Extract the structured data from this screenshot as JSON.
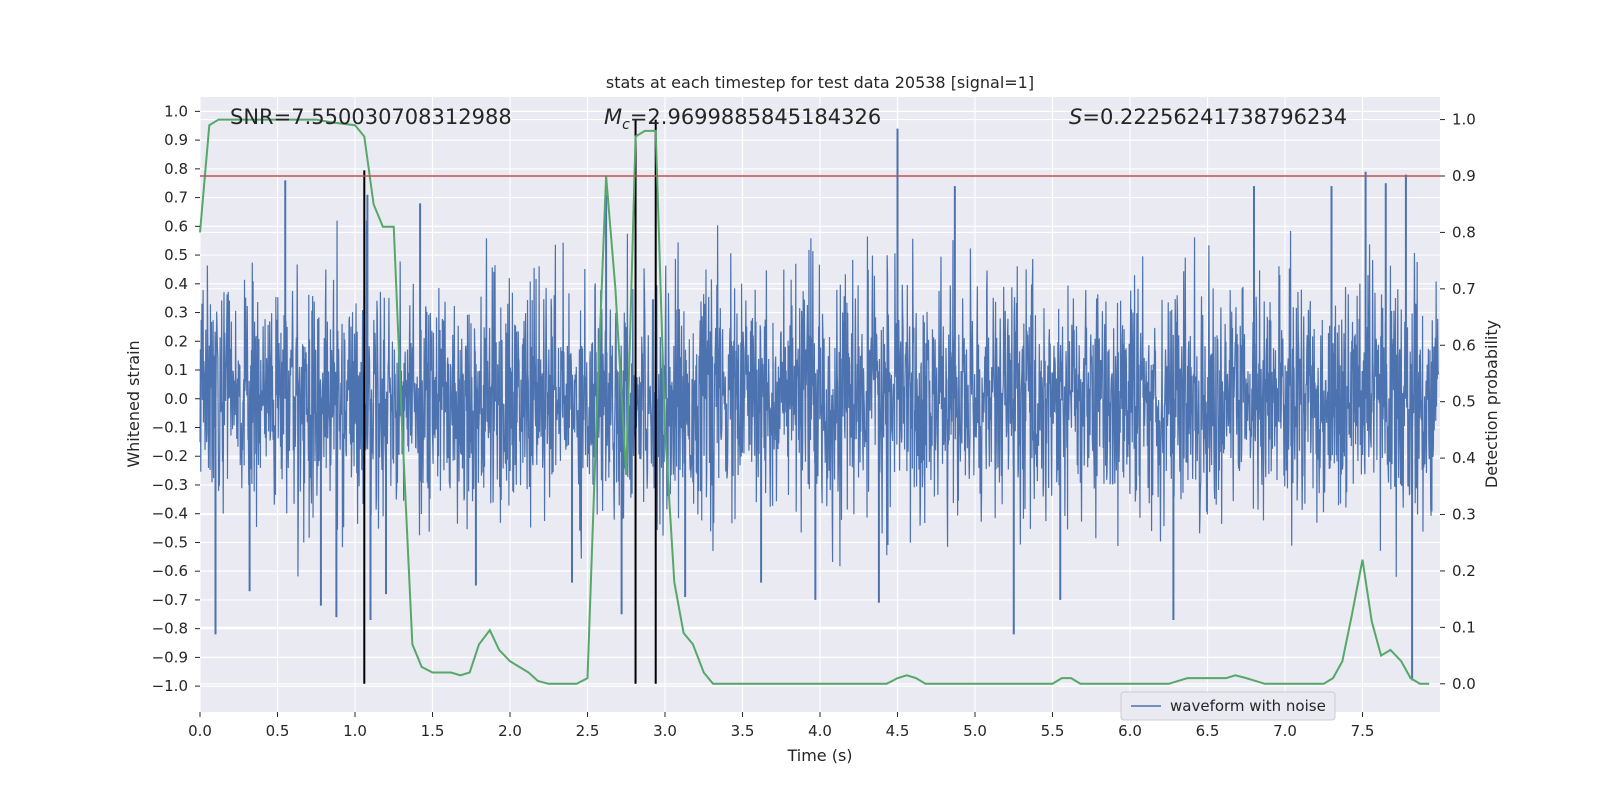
{
  "chart_data": {
    "type": "line",
    "title": "stats at each timestep for test data 20538 [signal=1]",
    "xlabel": "Time (s)",
    "ylabel_left": "Whitened strain",
    "ylabel_right": "Detection probability",
    "xlim": [
      0.0,
      8.0
    ],
    "ylim_left": [
      -1.09,
      1.05
    ],
    "ylim_right": [
      -0.05,
      1.04
    ],
    "x_ticks": [
      0.0,
      0.5,
      1.0,
      1.5,
      2.0,
      2.5,
      3.0,
      3.5,
      4.0,
      4.5,
      5.0,
      5.5,
      6.0,
      6.5,
      7.0,
      7.5
    ],
    "x_tick_labels": [
      "0.0",
      "0.5",
      "1.0",
      "1.5",
      "2.0",
      "2.5",
      "3.0",
      "3.5",
      "4.0",
      "4.5",
      "5.0",
      "5.5",
      "6.0",
      "6.5",
      "7.0",
      "7.5"
    ],
    "y_left_ticks": [
      1.0,
      0.9,
      0.8,
      0.7,
      0.6,
      0.5,
      0.4,
      0.3,
      0.2,
      0.1,
      0.0,
      -0.1,
      -0.2,
      -0.3,
      -0.4,
      -0.5,
      -0.6,
      -0.7,
      -0.8,
      -0.9,
      -1.0
    ],
    "y_left_tick_labels": [
      "1.0",
      "0.9",
      "0.8",
      "0.7",
      "0.6",
      "0.5",
      "0.4",
      "0.3",
      "0.2",
      "0.1",
      "0.0",
      "−0.1",
      "−0.2",
      "−0.3",
      "−0.4",
      "−0.5",
      "−0.6",
      "−0.7",
      "−0.8",
      "−0.9",
      "−1.0"
    ],
    "y_right_ticks": [
      1.0,
      0.9,
      0.8,
      0.7,
      0.6,
      0.5,
      0.4,
      0.3,
      0.2,
      0.1,
      0.0
    ],
    "y_right_tick_labels": [
      "1.0",
      "0.9",
      "0.8",
      "0.7",
      "0.6",
      "0.5",
      "0.4",
      "0.3",
      "0.2",
      "0.1",
      "0.0"
    ],
    "annotations": {
      "snr": "SNR=7.550030708312988",
      "mc_symbol": "M",
      "mc_sub": "c",
      "mc_value": "=2.9699885845184326",
      "s_symbol": "S",
      "s_value": "=0.22256241738796234"
    },
    "threshold_line": {
      "y_right": 0.9,
      "color": "#c44e52"
    },
    "vertical_markers": [
      {
        "x": 1.06,
        "y_right_top": 0.91
      },
      {
        "x": 2.81,
        "y_right_top": 1.0
      },
      {
        "x": 2.94,
        "y_right_top": 1.0
      }
    ],
    "series": [
      {
        "name": "waveform with noise",
        "axis": "left",
        "color": "#4c72b0",
        "description_envelope": "dense noise between about -0.45 and 0.45 with spikes",
        "spikes": [
          [
            0.1,
            -0.82
          ],
          [
            0.32,
            -0.67
          ],
          [
            0.55,
            0.76
          ],
          [
            0.78,
            -0.72
          ],
          [
            0.88,
            -0.76
          ],
          [
            1.08,
            0.71
          ],
          [
            1.1,
            -0.77
          ],
          [
            1.2,
            -0.68
          ],
          [
            1.42,
            0.68
          ],
          [
            1.78,
            -0.65
          ],
          [
            2.4,
            -0.64
          ],
          [
            2.62,
            0.71
          ],
          [
            2.72,
            -0.75
          ],
          [
            3.13,
            -0.69
          ],
          [
            3.62,
            -0.64
          ],
          [
            3.97,
            -0.7
          ],
          [
            4.38,
            -0.71
          ],
          [
            4.5,
            0.94
          ],
          [
            4.87,
            0.74
          ],
          [
            5.25,
            -0.82
          ],
          [
            5.55,
            -0.7
          ],
          [
            6.28,
            -0.77
          ],
          [
            6.8,
            0.74
          ],
          [
            7.3,
            0.74
          ],
          [
            7.52,
            0.79
          ],
          [
            7.65,
            0.75
          ],
          [
            7.78,
            0.78
          ],
          [
            7.82,
            -0.98
          ]
        ]
      },
      {
        "name": "Detection probability",
        "axis": "right",
        "color": "#55a868",
        "x": [
          0.0,
          0.06,
          0.12,
          0.25,
          0.5,
          0.75,
          0.85,
          1.0,
          1.06,
          1.12,
          1.18,
          1.25,
          1.3,
          1.37,
          1.43,
          1.5,
          1.56,
          1.62,
          1.68,
          1.74,
          1.8,
          1.87,
          1.93,
          2.0,
          2.06,
          2.12,
          2.18,
          2.25,
          2.31,
          2.37,
          2.43,
          2.5,
          2.56,
          2.62,
          2.68,
          2.75,
          2.81,
          2.87,
          2.94,
          3.0,
          3.06,
          3.12,
          3.18,
          3.25,
          3.31,
          3.37,
          3.5,
          3.62,
          3.75,
          3.87,
          4.0,
          4.12,
          4.25,
          4.37,
          4.43,
          4.5,
          4.56,
          4.62,
          4.68,
          4.75,
          4.87,
          5.0,
          5.12,
          5.25,
          5.37,
          5.43,
          5.5,
          5.56,
          5.62,
          5.68,
          5.75,
          5.87,
          6.0,
          6.12,
          6.25,
          6.37,
          6.43,
          6.5,
          6.56,
          6.62,
          6.68,
          6.75,
          6.81,
          6.87,
          6.93,
          7.0,
          7.12,
          7.25,
          7.31,
          7.37,
          7.43,
          7.5,
          7.56,
          7.62,
          7.68,
          7.75,
          7.81,
          7.87,
          7.93
        ],
        "values": [
          0.8,
          0.99,
          1.0,
          1.0,
          1.0,
          1.0,
          0.995,
          0.99,
          0.97,
          0.85,
          0.81,
          0.81,
          0.48,
          0.07,
          0.03,
          0.02,
          0.02,
          0.02,
          0.015,
          0.02,
          0.07,
          0.095,
          0.06,
          0.04,
          0.03,
          0.02,
          0.005,
          0.0,
          0.0,
          0.0,
          0.0,
          0.01,
          0.48,
          0.9,
          0.7,
          0.37,
          0.97,
          0.98,
          0.98,
          0.45,
          0.18,
          0.09,
          0.07,
          0.02,
          0.0,
          0.0,
          0.0,
          0.0,
          0.0,
          0.0,
          0.0,
          0.0,
          0.0,
          0.0,
          0.0,
          0.01,
          0.015,
          0.01,
          0.0,
          0.0,
          0.0,
          0.0,
          0.0,
          0.0,
          0.0,
          0.0,
          0.0,
          0.01,
          0.01,
          0.0,
          0.0,
          0.0,
          0.0,
          0.0,
          0.0,
          0.01,
          0.01,
          0.01,
          0.01,
          0.01,
          0.015,
          0.01,
          0.005,
          0.0,
          0.0,
          0.0,
          0.0,
          0.0,
          0.01,
          0.04,
          0.12,
          0.22,
          0.11,
          0.05,
          0.06,
          0.04,
          0.01,
          0.0,
          0.0
        ]
      }
    ],
    "legend": {
      "position": "lower right",
      "entries": [
        "waveform with noise"
      ]
    },
    "grid": true
  }
}
